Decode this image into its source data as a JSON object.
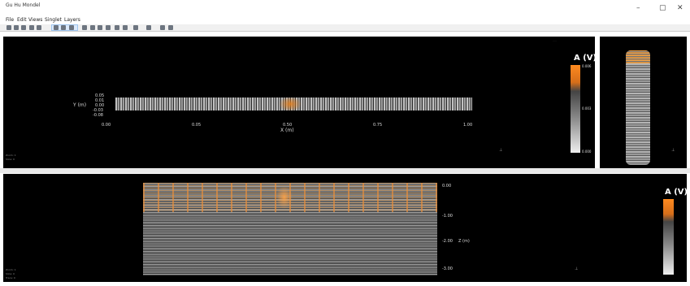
{
  "app": {
    "title": "Gu Hu Mondel"
  },
  "window_controls": {
    "minimize": "–",
    "maximize": "▢",
    "close": "✕"
  },
  "menu": {
    "items": [
      "File",
      "Edit",
      "Views",
      "Singlet",
      "Layers"
    ]
  },
  "top_panel": {
    "y_axis_label": "Y (m)",
    "y_ticks": [
      "0.05",
      "0.01",
      "0.00",
      "-0.03",
      "-0.08"
    ],
    "x_ticks": [
      "0.00",
      "0.05",
      "0.50",
      "0.75",
      "1.00"
    ],
    "x_axis_label": "X (m)",
    "colorbar": {
      "title": "A (V)",
      "max": "0.006",
      "mid": "0.003",
      "min": "0.000"
    },
    "status_lines": [
      "Zoom: 1",
      "Slice: 0"
    ]
  },
  "bottom_panel": {
    "colorbar": {
      "title": "A (V)"
    },
    "depth_ticks": [
      "0.00",
      "-1.00",
      "-2.00",
      "-3.00"
    ],
    "depth_axis_label": "Z (m)",
    "status_lines": [
      "Zoom: 1",
      "Slice: 0",
      "Trace: 0"
    ]
  },
  "colors": {
    "panel_bg": "#000000",
    "accent_orange": "#e8892b"
  }
}
